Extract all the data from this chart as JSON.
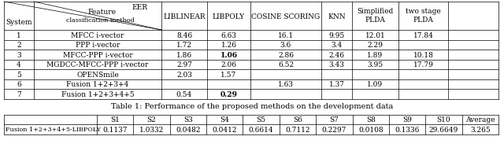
{
  "title1": "Table 1: Performance of the proposed methods on the development data",
  "table1_rows": [
    [
      "1",
      "MFCC i-vector",
      "8.46",
      "6.63",
      "16.1",
      "9.95",
      "12.01",
      "17.84"
    ],
    [
      "2",
      "PPP i-vector",
      "1.72",
      "1.26",
      "3.6",
      "3.4",
      "2.29",
      ""
    ],
    [
      "3",
      "MFCC-PPP i-vector",
      "1.86",
      "1.06",
      "2.86",
      "2.46",
      "1.89",
      "10.18"
    ],
    [
      "4",
      "MGDCC-MFCC-PPP i-vector",
      "2.97",
      "2.06",
      "6.52",
      "3.43",
      "3.95",
      "17.79"
    ],
    [
      "5",
      "OPENSmile",
      "2.03",
      "1.57",
      "",
      "",
      "",
      ""
    ],
    [
      "6",
      "Fusion 1+2+3+4",
      "",
      "",
      "1.63",
      "1.37",
      "1.09",
      ""
    ],
    [
      "7",
      "Fusion 1+2+3+4+5",
      "0.54",
      "0.29",
      "",
      "",
      "",
      ""
    ]
  ],
  "bold_libpoly": [
    false,
    false,
    true,
    false,
    false,
    false,
    true
  ],
  "table2_label": "Fusion 1+2+3+4+5-LIBPOLY",
  "table2_headers": [
    "",
    "S1",
    "S2",
    "S3",
    "S4",
    "S5",
    "S6",
    "S7",
    "S8",
    "S9",
    "S10",
    "Average"
  ],
  "table2_values": [
    "0.1137",
    "1.0332",
    "0.0482",
    "0.0412",
    "0.6614",
    "0.7112",
    "0.2297",
    "0.0108",
    "0.1336",
    "29.6649",
    "3.265"
  ],
  "font_size": 6.5,
  "font_size_small": 5.8
}
